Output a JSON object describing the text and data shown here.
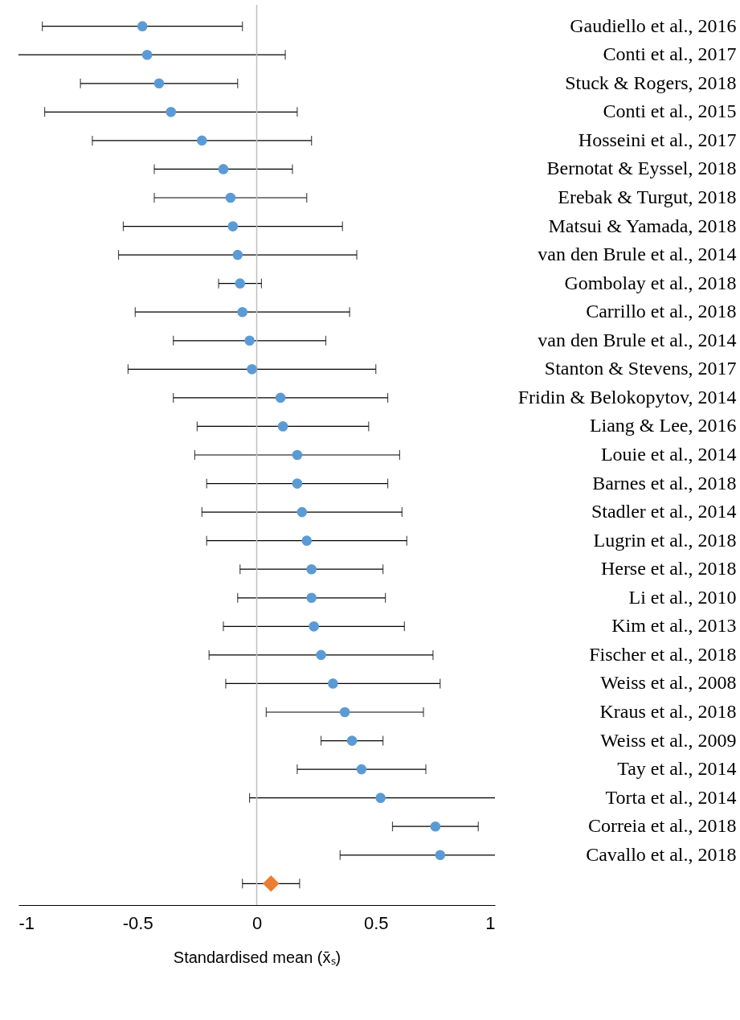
{
  "chart_data": {
    "type": "scatter",
    "orientation": "horizontal",
    "xlabel": "Standardised mean (x̄ₛ)",
    "categories": [
      "Gaudiello et al., 2016",
      "Conti et al., 2017",
      "Stuck & Rogers, 2018",
      "Conti et al., 2015",
      "Hosseini et al., 2017",
      "Bernotat & Eyssel, 2018",
      "Erebak & Turgut, 2018",
      "Matsui & Yamada, 2018",
      "van den Brule et al., 2014",
      "Gombolay et al., 2018",
      "Carrillo et al., 2018",
      "van den Brule et al., 2014",
      "Stanton & Stevens, 2017",
      "Fridin & Belokopytov, 2014",
      "Liang & Lee, 2016",
      "Louie et al., 2014",
      "Barnes et al., 2018",
      "Stadler et al., 2014",
      "Lugrin et al., 2018",
      "Herse et al., 2018",
      "Li et al., 2010",
      "Kim et al., 2013",
      "Fischer et al., 2018",
      "Weiss et al., 2008",
      "Kraus et al., 2018",
      "Weiss et al., 2009",
      "Tay et al., 2014",
      "Torta et al., 2014",
      "Correia et al., 2018",
      "Cavallo et al., 2018",
      null
    ],
    "series": [
      {
        "color": "#5b9bd5",
        "marker": "circle",
        "values": [
          -0.48,
          -0.46,
          -0.41,
          -0.36,
          -0.23,
          -0.14,
          -0.11,
          -0.1,
          -0.08,
          -0.07,
          -0.06,
          -0.03,
          -0.02,
          0.1,
          0.11,
          0.17,
          0.17,
          0.19,
          0.21,
          0.23,
          0.23,
          0.24,
          0.27,
          0.32,
          0.37,
          0.4,
          0.44,
          0.52,
          0.75,
          0.77,
          null
        ],
        "errors": [
          [
            -0.9,
            -0.06
          ],
          [
            -1.0,
            0.12
          ],
          [
            -0.74,
            -0.08
          ],
          [
            -0.89,
            0.17
          ],
          [
            -0.69,
            0.23
          ],
          [
            -0.43,
            0.15
          ],
          [
            -0.43,
            0.21
          ],
          [
            -0.56,
            0.36
          ],
          [
            -0.58,
            0.42
          ],
          [
            -0.16,
            0.02
          ],
          [
            -0.51,
            0.39
          ],
          [
            -0.35,
            0.29
          ],
          [
            -0.54,
            0.5
          ],
          [
            -0.35,
            0.55
          ],
          [
            -0.25,
            0.47
          ],
          [
            -0.26,
            0.6
          ],
          [
            -0.21,
            0.55
          ],
          [
            -0.23,
            0.61
          ],
          [
            -0.21,
            0.63
          ],
          [
            -0.07,
            0.53
          ],
          [
            -0.08,
            0.54
          ],
          [
            -0.14,
            0.62
          ],
          [
            -0.2,
            0.74
          ],
          [
            -0.13,
            0.77
          ],
          [
            0.04,
            0.7
          ],
          [
            0.27,
            0.53
          ],
          [
            0.17,
            0.71
          ],
          [
            -0.03,
            1.0
          ],
          [
            0.57,
            0.93
          ],
          [
            0.35,
            1.0
          ],
          null
        ]
      },
      {
        "color": "#ed7d31",
        "marker": "diamond",
        "values": [
          null,
          null,
          null,
          null,
          null,
          null,
          null,
          null,
          null,
          null,
          null,
          null,
          null,
          null,
          null,
          null,
          null,
          null,
          null,
          null,
          null,
          null,
          null,
          null,
          null,
          null,
          null,
          null,
          null,
          null,
          0.06
        ],
        "errors": [
          null,
          null,
          null,
          null,
          null,
          null,
          null,
          null,
          null,
          null,
          null,
          null,
          null,
          null,
          null,
          null,
          null,
          null,
          null,
          null,
          null,
          null,
          null,
          null,
          null,
          null,
          null,
          null,
          null,
          null,
          [
            -0.06,
            0.18
          ]
        ]
      }
    ],
    "xlim": [
      -1,
      1
    ],
    "xticks": [
      -1,
      -0.5,
      0,
      0.5,
      1
    ],
    "grid": false,
    "ref_lines": [
      {
        "axis": "x",
        "value": 0,
        "color": "#bfbfbf"
      }
    ]
  }
}
